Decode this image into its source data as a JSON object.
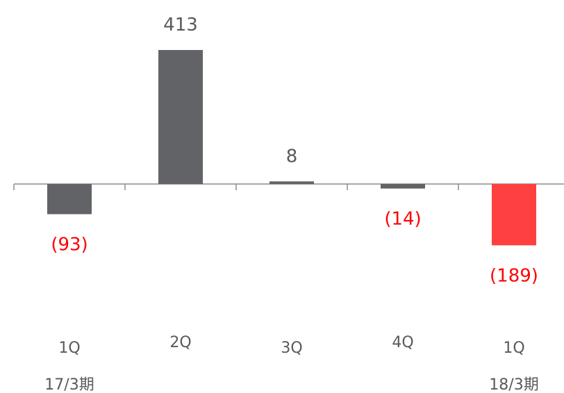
{
  "chart_data": {
    "type": "bar",
    "categories": [
      "1Q",
      "2Q",
      "3Q",
      "4Q",
      "1Q"
    ],
    "period_labels": [
      "17/3期",
      "",
      "",
      "",
      "18/3期"
    ],
    "values": [
      -93,
      413,
      8,
      -14,
      -189
    ],
    "data_labels": [
      "(93)",
      "413",
      "8",
      "(14)",
      "(189)"
    ],
    "bar_colors": [
      "#626366",
      "#626366",
      "#626366",
      "#626366",
      "#FF4040"
    ],
    "label_colors": [
      "#FF0000",
      "#595959",
      "#595959",
      "#FF0000",
      "#FF0000"
    ],
    "title": "",
    "xlabel": "",
    "ylabel": "",
    "ylim": [
      -189,
      413
    ],
    "grid": false
  }
}
